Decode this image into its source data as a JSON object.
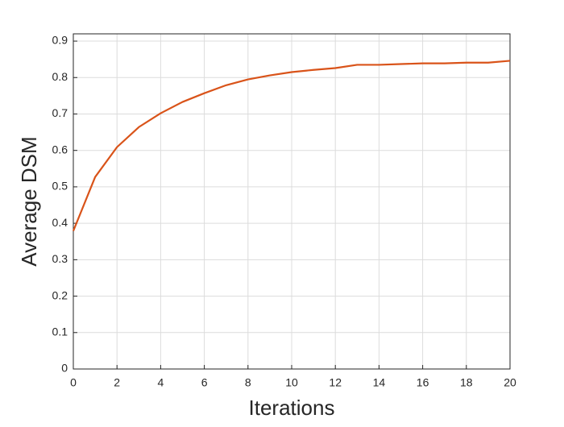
{
  "chart_data": {
    "type": "line",
    "xlabel": "Iterations",
    "ylabel": "Average DSM",
    "x": [
      0,
      1,
      2,
      3,
      4,
      5,
      6,
      7,
      8,
      9,
      10,
      11,
      12,
      13,
      14,
      15,
      16,
      17,
      18,
      19,
      20
    ],
    "series": [
      {
        "color": "#d95319",
        "values": [
          0.379,
          0.527,
          0.609,
          0.664,
          0.702,
          0.733,
          0.757,
          0.779,
          0.795,
          0.806,
          0.815,
          0.821,
          0.826,
          0.835,
          0.835,
          0.837,
          0.839,
          0.839,
          0.841,
          0.841,
          0.846
        ]
      }
    ],
    "xlim": [
      0,
      20
    ],
    "xticks": [
      0,
      2,
      4,
      6,
      8,
      10,
      12,
      14,
      16,
      18,
      20
    ],
    "ylim": [
      0,
      0.92
    ],
    "yticks": [
      0,
      0.1,
      0.2,
      0.3,
      0.4,
      0.5,
      0.6,
      0.7,
      0.8,
      0.9
    ],
    "grid": true
  }
}
